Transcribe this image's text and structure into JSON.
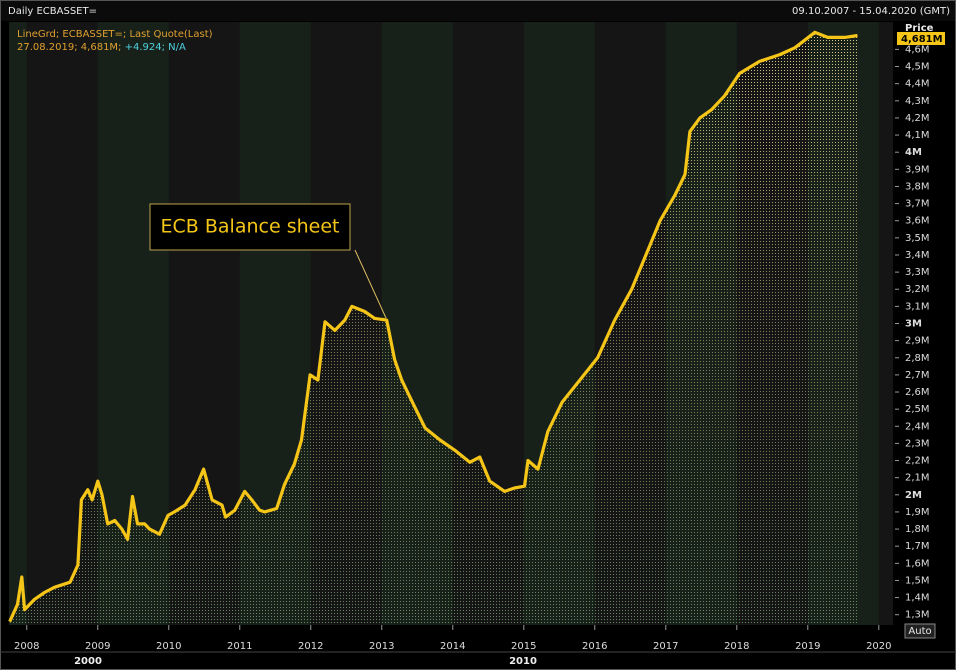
{
  "chart_data": {
    "type": "line",
    "title": "Daily ECBASSET=",
    "date_range": "09.10.2007 - 15.04.2020 (GMT)",
    "legend_info": [
      "27.08.2019; 4,681M;",
      "+4.924; N/A"
    ],
    "y_axis_label": "Price",
    "last_value_label": "4,681M",
    "annotation": "ECB Balance sheet",
    "scale_button": "Auto",
    "decade_labels": [
      {
        "value": 2000,
        "label": "2000"
      },
      {
        "value": 2010,
        "label": "2010"
      }
    ],
    "x": [
      2007.76,
      2007.87,
      2007.93,
      2007.97,
      2008.11,
      2008.25,
      2008.39,
      2008.61,
      2008.72,
      2008.77,
      2008.86,
      2008.92,
      2009.0,
      2009.06,
      2009.14,
      2009.24,
      2009.34,
      2009.42,
      2009.49,
      2009.56,
      2009.66,
      2009.73,
      2009.87,
      2009.99,
      2010.08,
      2010.23,
      2010.37,
      2010.49,
      2010.61,
      2010.75,
      2010.8,
      2010.93,
      2011.07,
      2011.17,
      2011.28,
      2011.35,
      2011.52,
      2011.63,
      2011.77,
      2011.87,
      2011.99,
      2012.1,
      2012.2,
      2012.34,
      2012.48,
      2012.58,
      2012.76,
      2012.9,
      2013.07,
      2013.18,
      2013.28,
      2013.42,
      2013.61,
      2013.82,
      2014.03,
      2014.24,
      2014.38,
      2014.52,
      2014.73,
      2014.87,
      2015.01,
      2015.06,
      2015.2,
      2015.34,
      2015.54,
      2015.79,
      2016.04,
      2016.28,
      2016.52,
      2016.7,
      2016.92,
      2017.13,
      2017.27,
      2017.34,
      2017.48,
      2017.65,
      2017.83,
      2018.04,
      2018.32,
      2018.61,
      2018.82,
      2019.1,
      2019.28,
      2019.52,
      2019.7
    ],
    "series": [
      {
        "name": "LineGrd; ECBASSET=; Last Quote(Last)",
        "color": "#f5c518",
        "values": [
          1.26,
          1.36,
          1.52,
          1.33,
          1.39,
          1.43,
          1.46,
          1.49,
          1.59,
          1.97,
          2.03,
          1.97,
          2.08,
          2.0,
          1.83,
          1.85,
          1.8,
          1.74,
          1.99,
          1.83,
          1.83,
          1.8,
          1.77,
          1.88,
          1.9,
          1.94,
          2.03,
          2.15,
          1.97,
          1.94,
          1.87,
          1.91,
          2.02,
          1.97,
          1.91,
          1.9,
          1.92,
          2.06,
          2.18,
          2.32,
          2.7,
          2.67,
          3.01,
          2.96,
          3.02,
          3.1,
          3.07,
          3.03,
          3.02,
          2.79,
          2.67,
          2.55,
          2.39,
          2.32,
          2.26,
          2.19,
          2.22,
          2.08,
          2.02,
          2.04,
          2.05,
          2.2,
          2.15,
          2.37,
          2.54,
          2.67,
          2.8,
          3.02,
          3.2,
          3.38,
          3.6,
          3.75,
          3.87,
          4.12,
          4.2,
          4.25,
          4.33,
          4.46,
          4.53,
          4.57,
          4.61,
          4.7,
          4.67,
          4.67,
          4.681
        ]
      }
    ],
    "xlim": [
      2007.75,
      2020.2
    ],
    "xticks": [
      2008,
      2009,
      2010,
      2011,
      2012,
      2013,
      2014,
      2015,
      2016,
      2017,
      2018,
      2019,
      2020
    ],
    "ylim": [
      1.24,
      4.76
    ],
    "yticks": [
      {
        "value": 1.3,
        "label": "1,3M"
      },
      {
        "value": 1.4,
        "label": "1,4M"
      },
      {
        "value": 1.5,
        "label": "1,5M"
      },
      {
        "value": 1.6,
        "label": "1,6M"
      },
      {
        "value": 1.7,
        "label": "1,7M"
      },
      {
        "value": 1.8,
        "label": "1,8M"
      },
      {
        "value": 1.9,
        "label": "1,9M"
      },
      {
        "value": 2,
        "label": "2M"
      },
      {
        "value": 2.1,
        "label": "2,1M"
      },
      {
        "value": 2.2,
        "label": "2,2M"
      },
      {
        "value": 2.3,
        "label": "2,3M"
      },
      {
        "value": 2.4,
        "label": "2,4M"
      },
      {
        "value": 2.5,
        "label": "2,5M"
      },
      {
        "value": 2.6,
        "label": "2,6M"
      },
      {
        "value": 2.7,
        "label": "2,7M"
      },
      {
        "value": 2.8,
        "label": "2,8M"
      },
      {
        "value": 2.9,
        "label": "2,9M"
      },
      {
        "value": 3,
        "label": "3M"
      },
      {
        "value": 3.1,
        "label": "3,1M"
      },
      {
        "value": 3.2,
        "label": "3,2M"
      },
      {
        "value": 3.3,
        "label": "3,3M"
      },
      {
        "value": 3.4,
        "label": "3,4M"
      },
      {
        "value": 3.5,
        "label": "3,5M"
      },
      {
        "value": 3.6,
        "label": "3,6M"
      },
      {
        "value": 3.7,
        "label": "3,7M"
      },
      {
        "value": 3.8,
        "label": "3,8M"
      },
      {
        "value": 3.9,
        "label": "3,9M"
      },
      {
        "value": 4,
        "label": "4M"
      },
      {
        "value": 4.1,
        "label": "4,1M"
      },
      {
        "value": 4.2,
        "label": "4,2M"
      },
      {
        "value": 4.3,
        "label": "4,3M"
      },
      {
        "value": 4.4,
        "label": "4,4M"
      },
      {
        "value": 4.5,
        "label": "4,5M"
      },
      {
        "value": 4.6,
        "label": "4,6M"
      }
    ]
  }
}
